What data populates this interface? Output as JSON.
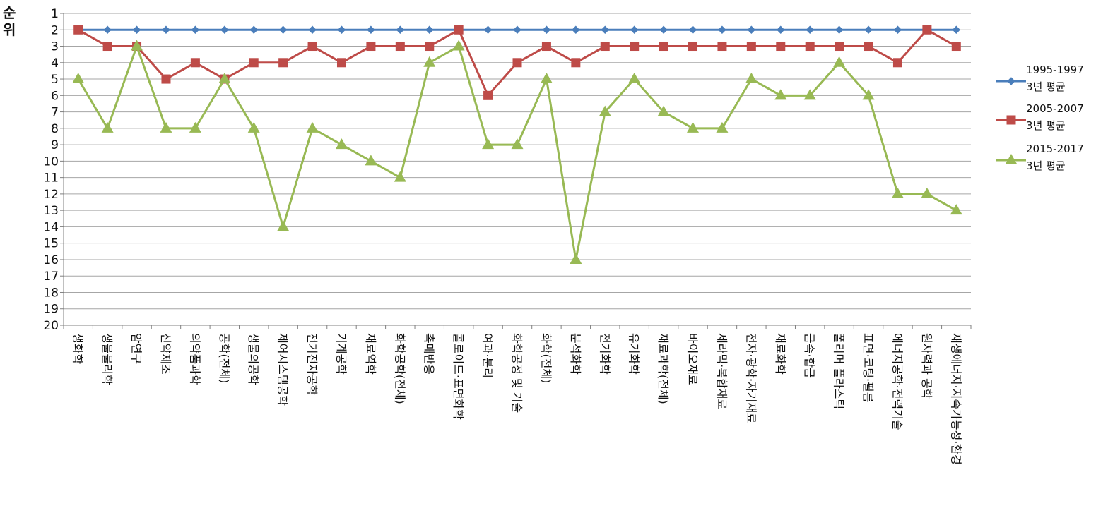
{
  "chart_data": {
    "type": "line",
    "title": "",
    "ylabel_line1": "순",
    "ylabel_line2": "위",
    "xlabel": "",
    "ylim": [
      1,
      20
    ],
    "y_inverted": true,
    "yticks": [
      1,
      2,
      3,
      4,
      5,
      6,
      7,
      8,
      9,
      10,
      11,
      12,
      13,
      14,
      15,
      16,
      17,
      18,
      19,
      20
    ],
    "grid": true,
    "legend_position": "right",
    "categories": [
      "생화학",
      "생물물리학",
      "암연구",
      "신약제조",
      "의약품과학",
      "공학(전체)",
      "생물의공학",
      "제어시스템공학",
      "전기전자공학",
      "기계공학",
      "재료역학",
      "화학공학(전체)",
      "촉매반응",
      "콜로이드·표면화학",
      "여과·분리",
      "화학공정 및 기술",
      "화학(전체)",
      "분석화학",
      "전기화학",
      "유기화학",
      "재료과학(전체)",
      "바이오재료",
      "세라믹·복합재료",
      "전자·광학·자기재료",
      "재료화학",
      "금속·합금",
      "폴리머 플라스틱",
      "표면·코팅·필름",
      "에너지공학·전력기술",
      "원자력과 공학",
      "재생에너지·지속가능성·환경"
    ],
    "series": [
      {
        "name_line1": "1995-1997",
        "name_line2": "3년 평균",
        "color": "#4a7ebb",
        "marker": "diamond",
        "values": [
          2,
          2,
          2,
          2,
          2,
          2,
          2,
          2,
          2,
          2,
          2,
          2,
          2,
          2,
          2,
          2,
          2,
          2,
          2,
          2,
          2,
          2,
          2,
          2,
          2,
          2,
          2,
          2,
          2,
          2,
          2
        ]
      },
      {
        "name_line1": "2005-2007",
        "name_line2": "3년 평균",
        "color": "#be4b48",
        "marker": "square",
        "values": [
          2,
          3,
          3,
          5,
          4,
          5,
          4,
          4,
          3,
          4,
          3,
          3,
          3,
          2,
          6,
          4,
          3,
          4,
          3,
          3,
          3,
          3,
          3,
          3,
          3,
          3,
          3,
          3,
          4,
          2,
          3
        ]
      },
      {
        "name_line1": "2015-2017",
        "name_line2": "3년 평균",
        "color": "#98b954",
        "marker": "triangle",
        "values": [
          5,
          8,
          3,
          8,
          8,
          5,
          8,
          14,
          8,
          9,
          10,
          11,
          4,
          3,
          9,
          9,
          5,
          16,
          7,
          5,
          7,
          8,
          8,
          5,
          6,
          6,
          4,
          6,
          12,
          12,
          13
        ]
      }
    ]
  }
}
